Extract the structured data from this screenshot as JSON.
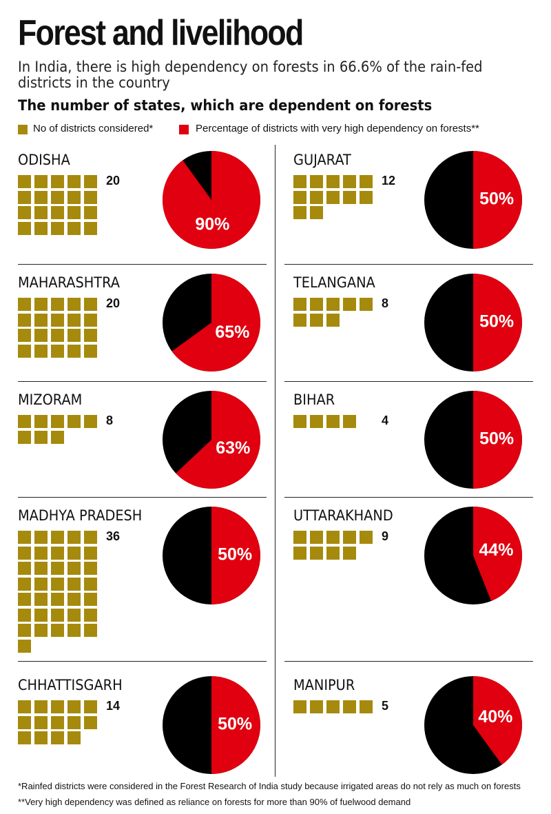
{
  "header": {
    "title": "Forest and livelihood",
    "subtitle": "In India, there is high dependency on forests in 66.6% of the rain-fed districts in the country",
    "heading": "The number of states, which are dependent on forests"
  },
  "legend": {
    "districts_label": "No of districts considered*",
    "percentage_label": "Percentage of districts with very high dependency on forests**"
  },
  "colors": {
    "districts": "#a58a0d",
    "high_dependency": "#e0000f",
    "remainder": "#000000"
  },
  "footnotes": {
    "note1": "*Rainfed districts were considered in the Forest Research of India study because irrigated areas do not rely as much on forests",
    "note2": "**Very high dependency was defined as reliance on forests for more than 90% of fuelwood demand"
  },
  "chart_data": {
    "type": "pie",
    "title": "The number of states, which are dependent on forests",
    "series": [
      {
        "name": "No of districts considered*"
      },
      {
        "name": "Percentage of districts with very high dependency on forests**"
      }
    ],
    "states": [
      {
        "state": "ODISHA",
        "districts": 20,
        "districts_label": "20",
        "percent": 90,
        "percent_label": "90%"
      },
      {
        "state": "MAHARASHTRA",
        "districts": 20,
        "districts_label": "20",
        "percent": 65,
        "percent_label": "65%"
      },
      {
        "state": "MIZORAM",
        "districts": 8,
        "districts_label": "8",
        "percent": 63,
        "percent_label": "63%"
      },
      {
        "state": "MADHYA PRADESH",
        "districts": 36,
        "districts_label": "36",
        "percent": 50,
        "percent_label": "50%"
      },
      {
        "state": "CHHATTISGARH",
        "districts": 14,
        "districts_label": "14",
        "percent": 50,
        "percent_label": "50%"
      },
      {
        "state": "GUJARAT",
        "districts": 12,
        "districts_label": "12",
        "percent": 50,
        "percent_label": "50%"
      },
      {
        "state": "TELANGANA",
        "districts": 8,
        "districts_label": "8",
        "percent": 50,
        "percent_label": "50%"
      },
      {
        "state": "BIHAR",
        "districts": 4,
        "districts_label": "4",
        "percent": 50,
        "percent_label": "50%"
      },
      {
        "state": "UTTARAKHAND",
        "districts": 9,
        "districts_label": "9",
        "percent": 44,
        "percent_label": "44%"
      },
      {
        "state": "MANIPUR",
        "districts": 5,
        "districts_label": "5",
        "percent": 40,
        "percent_label": "40%"
      }
    ]
  }
}
